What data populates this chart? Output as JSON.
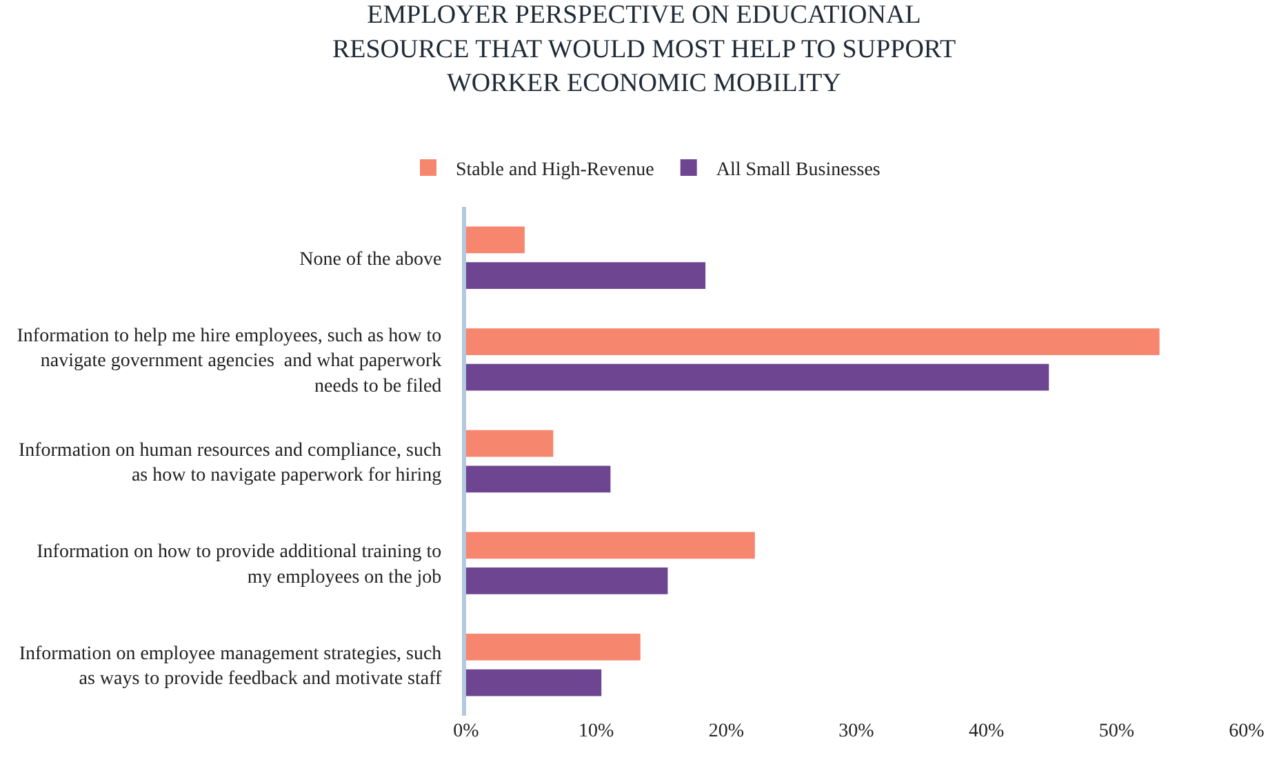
{
  "chart_data": {
    "type": "bar",
    "orientation": "horizontal",
    "title": "EMPLOYER PERSPECTIVE ON EDUCATIONAL\nRESOURCE THAT WOULD MOST HELP TO SUPPORT\nWORKER ECONOMIC MOBILITY",
    "categories": [
      "None of the above",
      "Information to help me hire employees, such as how to\nnavigate government agencies  and what paperwork\nneeds to be filed",
      "Information on human resources and compliance, such\nas how to navigate paperwork for hiring",
      "Information on how to provide additional training to\nmy employees on the job",
      "Information on employee management strategies, such\nas ways to provide feedback and motivate staff"
    ],
    "series": [
      {
        "name": "Stable and High-Revenue",
        "color": "#f7866e",
        "values": [
          4.5,
          53.3,
          6.7,
          22.2,
          13.4
        ]
      },
      {
        "name": "All Small Businesses",
        "color": "#6e4590",
        "values": [
          18.4,
          44.8,
          11.1,
          15.5,
          10.4
        ]
      }
    ],
    "xlim": [
      0,
      60
    ],
    "xticks": [
      {
        "value": 0,
        "label": "0%"
      },
      {
        "value": 10,
        "label": "10%"
      },
      {
        "value": 20,
        "label": "20%"
      },
      {
        "value": 30,
        "label": "30%"
      },
      {
        "value": 40,
        "label": "40%"
      },
      {
        "value": 50,
        "label": "50%"
      },
      {
        "value": 60,
        "label": "60%"
      }
    ],
    "legend": "top"
  }
}
